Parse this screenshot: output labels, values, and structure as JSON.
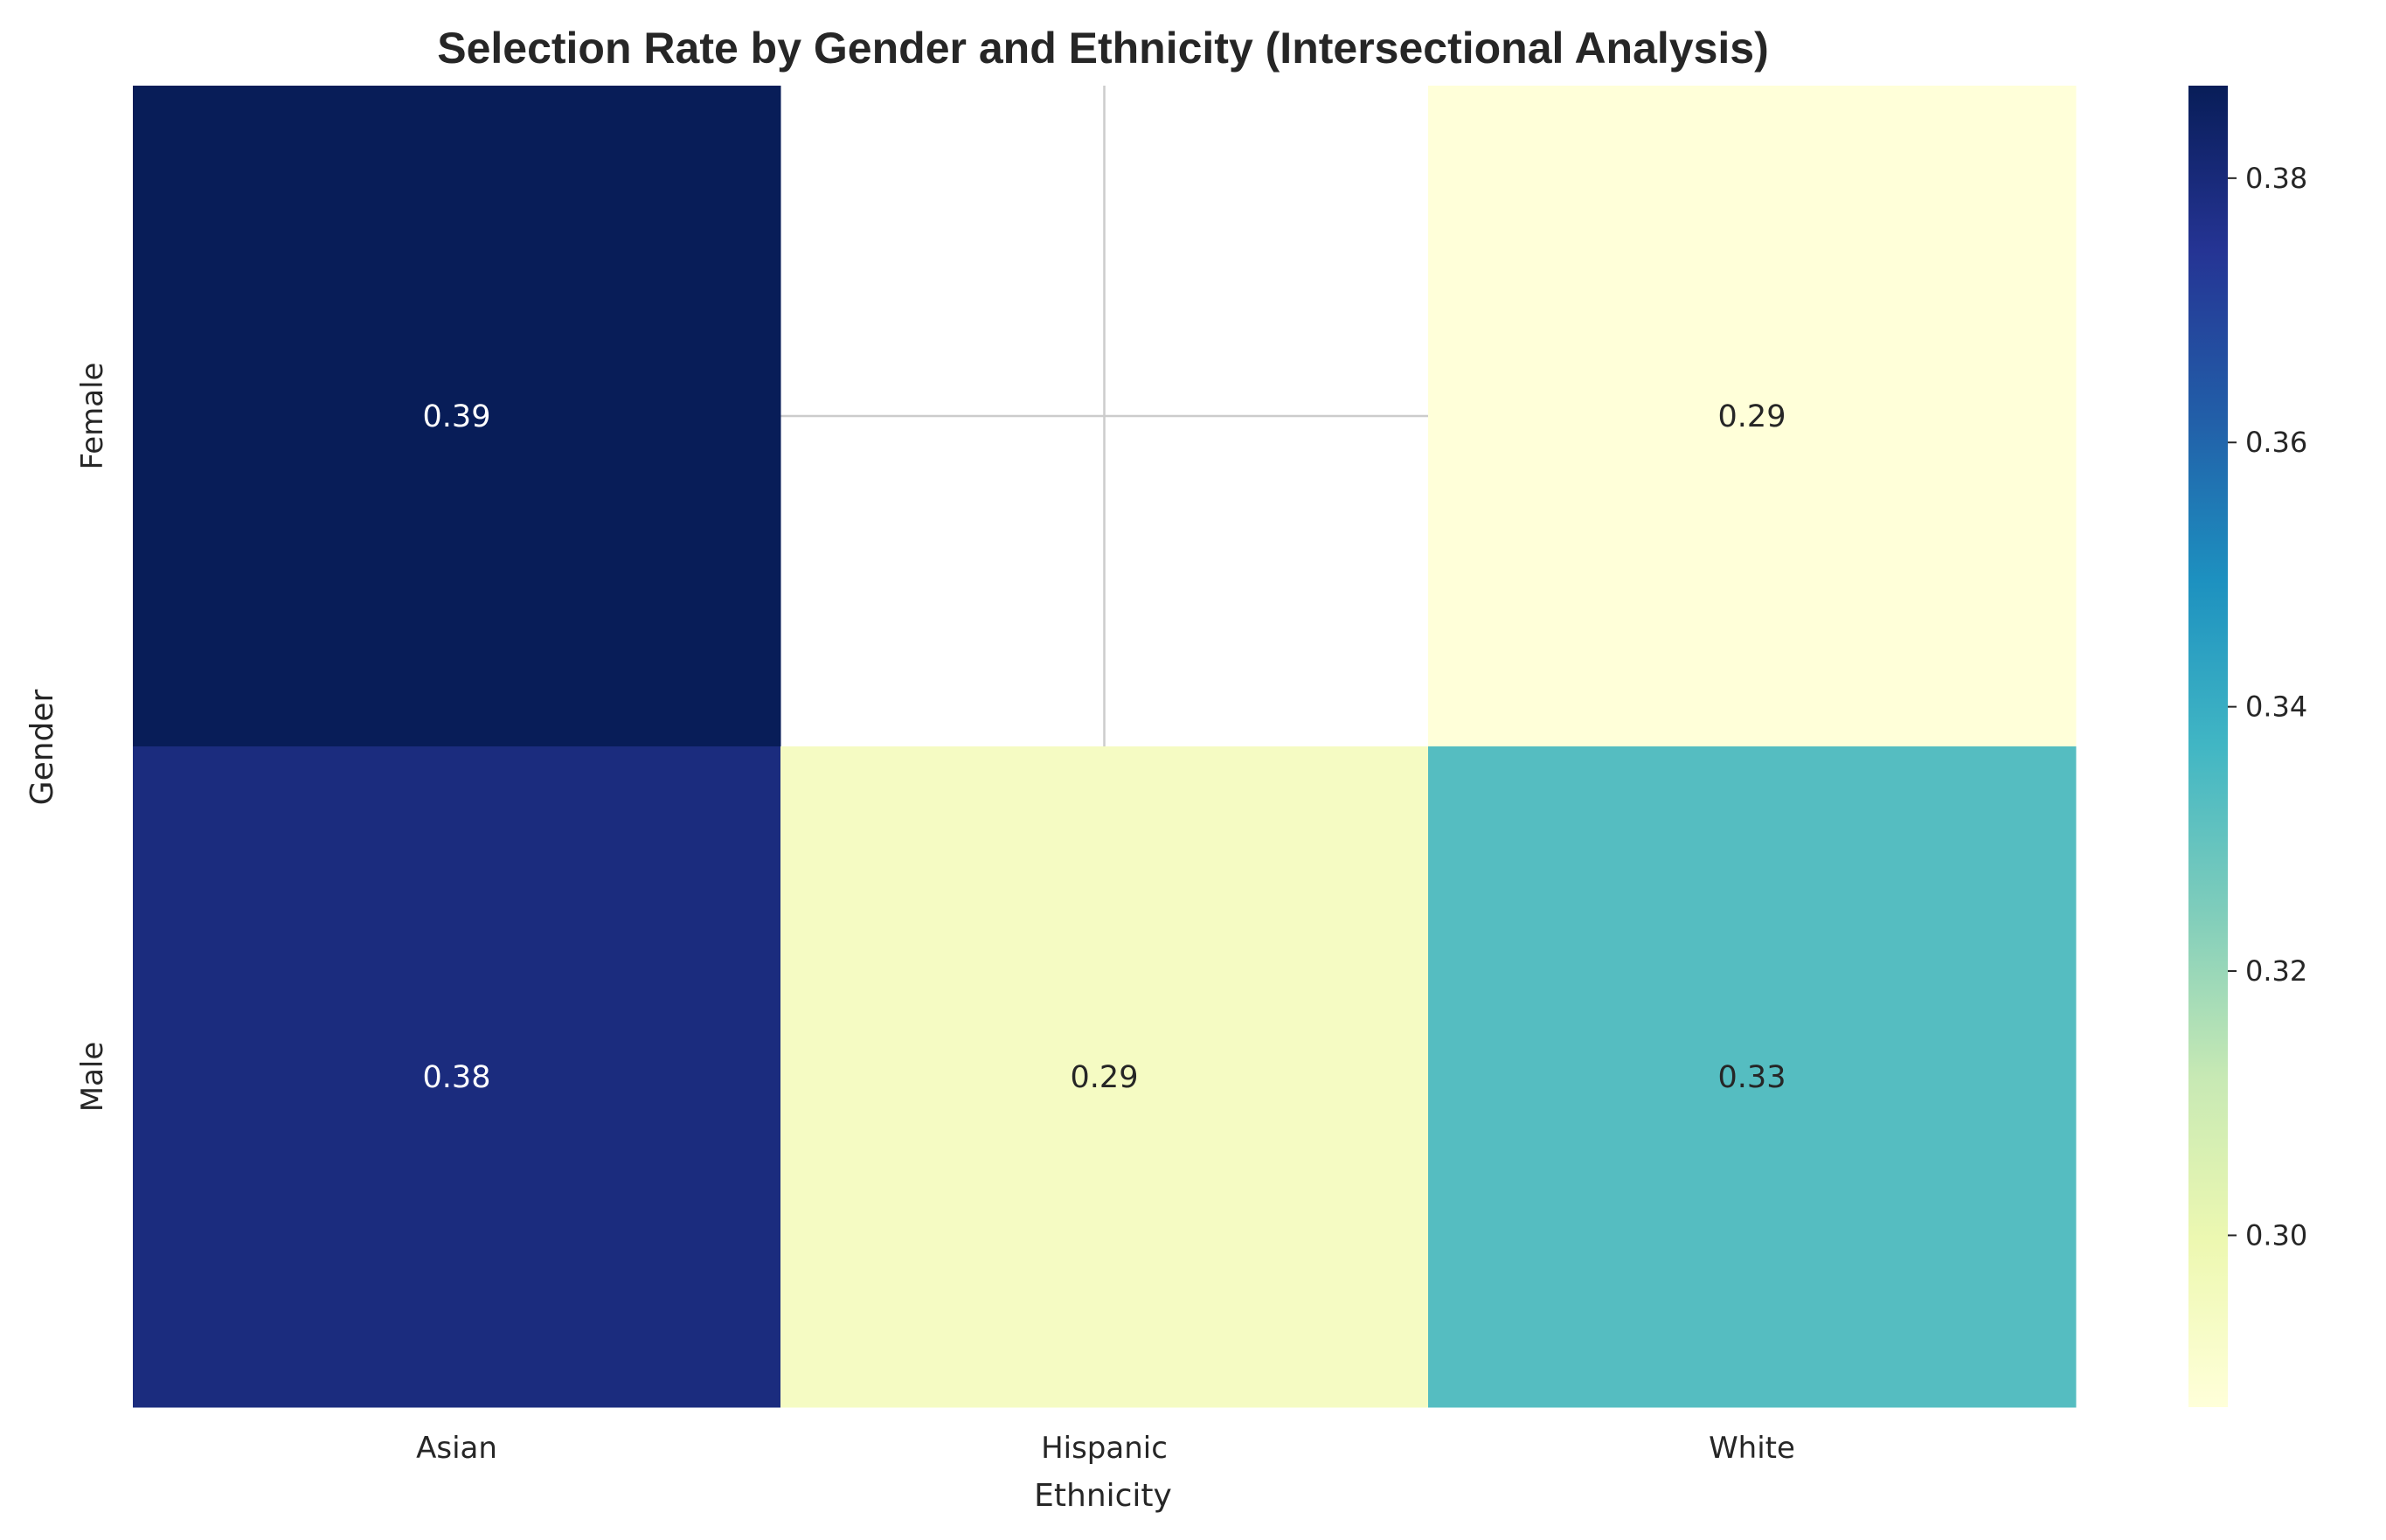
{
  "chart_data": {
    "type": "heatmap",
    "title": "Selection Rate by Gender and Ethnicity (Intersectional Analysis)",
    "xlabel": "Ethnicity",
    "ylabel": "Gender",
    "x_categories": [
      "Asian",
      "Hispanic",
      "White"
    ],
    "y_categories": [
      "Female",
      "Male"
    ],
    "values": [
      [
        0.387,
        null,
        0.287
      ],
      [
        0.379,
        0.294,
        0.333
      ]
    ],
    "annotations": [
      [
        "0.39",
        "",
        "0.29"
      ],
      [
        "0.38",
        "0.29",
        "0.33"
      ]
    ],
    "colormap": "YlGnBu",
    "vmin": 0.287,
    "vmax": 0.387,
    "colorbar_ticks": [
      0.3,
      0.32,
      0.34,
      0.36,
      0.38
    ],
    "colorbar_tick_labels": [
      "0.30",
      "0.32",
      "0.34",
      "0.36",
      "0.38"
    ],
    "grid": true,
    "missing_cell_color": "#ffffff",
    "grid_color": "#cccccc"
  }
}
